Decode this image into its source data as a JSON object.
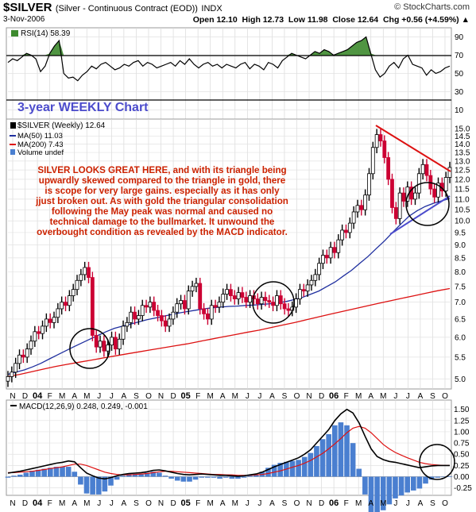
{
  "header": {
    "symbol": "$SILVER",
    "description": "(Silver - Continuous Contract (EOD))",
    "exchange": "INDX",
    "date": "3-Nov-2006",
    "quote_line": "Open 12.10  High 12.73  Low 11.98  Close 12.64  Chg +0.56 (+4.59%) ▲",
    "watermark": "© StockCharts.com"
  },
  "colors": {
    "price_up": "#000000",
    "price_down": "#cc0033",
    "ma50": "#1f2f9f",
    "ma200": "#dd1111",
    "macd_line": "#000000",
    "signal_line": "#dd1111",
    "histogram": "#4a7fd0",
    "rsi_fill": "#3d8a2e",
    "note_text": "#cc2200",
    "heading_text": "#4c4ccc",
    "trendline": "#dd1111",
    "lower_trendline": "#4b4bcc"
  },
  "chart_data": [
    {
      "type": "line",
      "title": "RSI(14) 58.39",
      "x_labels": [
        "N",
        "D",
        "04",
        "F",
        "M",
        "A",
        "M",
        "J",
        "J",
        "A",
        "S",
        "O",
        "N",
        "D",
        "05",
        "F",
        "M",
        "A",
        "M",
        "J",
        "J",
        "A",
        "S",
        "O",
        "N",
        "D",
        "06",
        "F",
        "M",
        "A",
        "M",
        "J",
        "J",
        "A",
        "S",
        "O"
      ],
      "y_ticks": [
        10,
        30,
        50,
        70,
        90
      ],
      "ylim": [
        0,
        100
      ],
      "reference_lines": [
        30,
        70
      ],
      "fill": "above 70 / below 30",
      "series": [
        {
          "name": "RSI(14)",
          "values": [
            62,
            66,
            64,
            68,
            72,
            70,
            66,
            52,
            58,
            72,
            80,
            86,
            50,
            45,
            46,
            42,
            48,
            52,
            58,
            55,
            60,
            62,
            58,
            54,
            56,
            60,
            58,
            62,
            64,
            58,
            62,
            60,
            56,
            58,
            60,
            62,
            58,
            64,
            60,
            66,
            60,
            56,
            60,
            62,
            58,
            60,
            56,
            60,
            58,
            56,
            60,
            62,
            55,
            60,
            58,
            54,
            62,
            60,
            56,
            64,
            68,
            72,
            70,
            68,
            66,
            70,
            74,
            72,
            76,
            74,
            70,
            72,
            74,
            76,
            80,
            84,
            86,
            90,
            72,
            54,
            46,
            50,
            58,
            62,
            56,
            66,
            70,
            60,
            58,
            56,
            48,
            54,
            50,
            52,
            56,
            58
          ]
        }
      ]
    },
    {
      "type": "line",
      "title": "$SILVER (Weekly) 12.64",
      "heading": "3-year WEEKLY Chart",
      "legend": [
        "MA(50) 11.03",
        "MA(200) 7.43",
        "Volume undef"
      ],
      "x_labels": [
        "N",
        "D",
        "04",
        "F",
        "M",
        "A",
        "M",
        "J",
        "J",
        "A",
        "S",
        "O",
        "N",
        "D",
        "05",
        "F",
        "M",
        "A",
        "M",
        "J",
        "J",
        "A",
        "S",
        "O",
        "N",
        "D",
        "06",
        "F",
        "M",
        "A",
        "M",
        "J",
        "J",
        "A",
        "S",
        "O"
      ],
      "y_ticks": [
        5.0,
        5.5,
        6.0,
        6.5,
        7.0,
        7.5,
        8.0,
        8.5,
        9.0,
        9.5,
        10.0,
        10.5,
        11.0,
        11.5,
        12.0,
        12.5,
        13.0,
        13.5,
        14.0,
        14.5,
        15.0
      ],
      "ylim": [
        4.85,
        15.2
      ],
      "scale": "log",
      "annotation": "SILVER LOOKS GREAT HERE, and with its triangle being upwardly skewed compared to the triangle in gold, there is scope for very large gains. especially as it has only jjust broken out. As with gold the triangular consolidation following the May peak was normal and caused no technical damage to the bullmarket. It unwound the overbought condition as revealed by the MACD indicator.",
      "close": [
        5.05,
        5.15,
        5.35,
        5.55,
        5.5,
        5.7,
        5.9,
        6.15,
        6.1,
        6.3,
        6.5,
        6.4,
        6.55,
        6.8,
        7.0,
        6.9,
        7.2,
        7.4,
        7.7,
        7.9,
        8.15,
        7.8,
        6.05,
        5.75,
        5.9,
        5.65,
        5.8,
        6.0,
        5.7,
        5.95,
        6.3,
        6.4,
        6.7,
        6.5,
        6.6,
        6.9,
        6.85,
        7.0,
        6.75,
        6.6,
        6.45,
        6.3,
        6.5,
        6.7,
        6.95,
        7.05,
        6.8,
        7.35,
        7.5,
        7.6,
        6.8,
        6.65,
        6.5,
        6.9,
        6.85,
        7.0,
        7.25,
        7.4,
        7.2,
        7.1,
        7.3,
        7.15,
        7.0,
        7.2,
        7.1,
        6.95,
        7.15,
        7.05,
        7.0,
        6.9,
        7.2,
        6.95,
        6.8,
        6.75,
        6.85,
        7.1,
        7.4,
        7.35,
        7.55,
        7.7,
        7.9,
        8.3,
        8.6,
        8.5,
        8.9,
        8.7,
        9.2,
        9.6,
        9.5,
        9.9,
        10.4,
        10.7,
        10.5,
        11.2,
        12.3,
        13.8,
        14.6,
        14.2,
        13.2,
        12.0,
        10.6,
        10.1,
        11.3,
        10.9,
        11.6,
        11.0,
        11.3,
        12.3,
        12.8,
        12.2,
        11.5,
        11.1,
        11.8,
        11.4,
        12.1,
        12.64
      ],
      "ma50": [
        5.1,
        5.15,
        5.2,
        5.27,
        5.35,
        5.45,
        5.55,
        5.65,
        5.75,
        5.85,
        5.95,
        6.05,
        6.15,
        6.24,
        6.3,
        6.36,
        6.42,
        6.48,
        6.53,
        6.58,
        6.63,
        6.68,
        6.72,
        6.76,
        6.8,
        6.83,
        6.85,
        6.87,
        6.88,
        6.9,
        6.91,
        6.93,
        6.95,
        6.98,
        7.02,
        7.08,
        7.15,
        7.25,
        7.35,
        7.5,
        7.65,
        7.85,
        8.05,
        8.3,
        8.55,
        8.85,
        9.15,
        9.5,
        9.85,
        10.2,
        10.45,
        10.65,
        10.8,
        10.92,
        11.03
      ],
      "ma200": [
        5.05,
        5.1,
        5.16,
        5.22,
        5.28,
        5.33,
        5.38,
        5.43,
        5.48,
        5.53,
        5.58,
        5.63,
        5.68,
        5.73,
        5.78,
        5.83,
        5.89,
        5.95,
        6.01,
        6.07,
        6.13,
        6.19,
        6.26,
        6.33,
        6.4,
        6.48,
        6.56,
        6.64,
        6.72,
        6.8,
        6.88,
        6.96,
        7.04,
        7.12,
        7.2,
        7.28,
        7.36,
        7.43
      ]
    },
    {
      "type": "line",
      "title": "MACD(12,26,9) 0.248, 0.249, -0.001",
      "x_labels": [
        "N",
        "D",
        "04",
        "F",
        "M",
        "A",
        "M",
        "J",
        "J",
        "A",
        "S",
        "O",
        "N",
        "D",
        "05",
        "F",
        "M",
        "A",
        "M",
        "J",
        "J",
        "A",
        "S",
        "O",
        "N",
        "D",
        "06",
        "F",
        "M",
        "A",
        "M",
        "J",
        "J",
        "A",
        "S",
        "O"
      ],
      "y_ticks": [
        -0.25,
        0.0,
        0.25,
        0.5,
        0.75,
        1.0,
        1.25,
        1.5
      ],
      "ylim": [
        -0.38,
        1.6
      ],
      "series": [
        {
          "name": "MACD(12,26,9)",
          "values": [
            0.08,
            0.1,
            0.12,
            0.15,
            0.18,
            0.21,
            0.24,
            0.27,
            0.3,
            0.32,
            0.35,
            0.33,
            0.2,
            0.08,
            0.02,
            -0.03,
            -0.05,
            -0.02,
            0.02,
            0.05,
            0.07,
            0.08,
            0.09,
            0.11,
            0.14,
            0.15,
            0.13,
            0.1,
            0.07,
            0.05,
            0.04,
            0.05,
            0.06,
            0.05,
            0.04,
            0.03,
            0.03,
            0.02,
            0.01,
            0.02,
            0.04,
            0.06,
            0.1,
            0.16,
            0.22,
            0.27,
            0.32,
            0.37,
            0.42,
            0.5,
            0.6,
            0.75,
            0.9,
            1.05,
            1.25,
            1.4,
            1.5,
            1.42,
            1.2,
            0.9,
            0.62,
            0.45,
            0.38,
            0.34,
            0.32,
            0.29,
            0.26,
            0.23,
            0.2,
            0.22,
            0.24,
            0.25,
            0.25,
            0.25
          ]
        },
        {
          "name": "signal",
          "values": [
            0.09,
            0.09,
            0.1,
            0.11,
            0.12,
            0.14,
            0.16,
            0.18,
            0.2,
            0.22,
            0.25,
            0.28,
            0.28,
            0.25,
            0.2,
            0.15,
            0.1,
            0.07,
            0.05,
            0.04,
            0.04,
            0.05,
            0.06,
            0.07,
            0.09,
            0.11,
            0.12,
            0.12,
            0.11,
            0.1,
            0.09,
            0.08,
            0.07,
            0.06,
            0.05,
            0.05,
            0.04,
            0.04,
            0.03,
            0.03,
            0.03,
            0.04,
            0.05,
            0.07,
            0.1,
            0.13,
            0.17,
            0.21,
            0.25,
            0.3,
            0.36,
            0.44,
            0.52,
            0.62,
            0.73,
            0.85,
            0.98,
            1.08,
            1.12,
            1.08,
            0.98,
            0.85,
            0.72,
            0.62,
            0.54,
            0.48,
            0.42,
            0.37,
            0.32,
            0.29,
            0.27,
            0.26,
            0.25,
            0.249
          ]
        }
      ]
    }
  ]
}
